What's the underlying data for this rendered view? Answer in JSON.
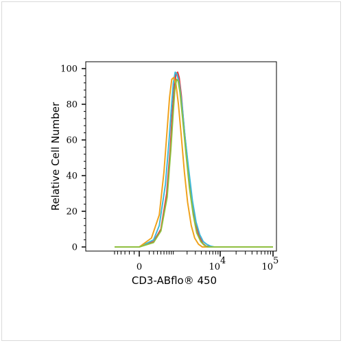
{
  "chart_data": {
    "type": "line",
    "xlabel": "CD3-ABflo® 450",
    "ylabel": "Relative Cell Number",
    "y_ticks": [
      "0",
      "20",
      "40",
      "60",
      "80",
      "100"
    ],
    "x_ticks": [
      {
        "label": "0"
      },
      {
        "label": "10",
        "sup": "4"
      },
      {
        "label": "10",
        "sup": "5"
      }
    ],
    "ylim": [
      0,
      100
    ],
    "x_scale": "biexponential",
    "grid": false,
    "series": [
      {
        "color": "#e23b3b",
        "points": [
          [
            -600,
            0
          ],
          [
            0,
            0
          ],
          [
            300,
            3
          ],
          [
            500,
            10
          ],
          [
            700,
            30
          ],
          [
            850,
            55
          ],
          [
            950,
            75
          ],
          [
            1050,
            90
          ],
          [
            1150,
            97
          ],
          [
            1250,
            98
          ],
          [
            1350,
            95
          ],
          [
            1500,
            85
          ],
          [
            1750,
            65
          ],
          [
            2100,
            45
          ],
          [
            2500,
            28
          ],
          [
            3000,
            14
          ],
          [
            3600,
            6
          ],
          [
            4300,
            2
          ],
          [
            5000,
            0.5
          ],
          [
            6500,
            0
          ],
          [
            100000,
            0
          ]
        ]
      },
      {
        "color": "#3db9d8",
        "points": [
          [
            -600,
            0
          ],
          [
            0,
            0
          ],
          [
            300,
            4
          ],
          [
            450,
            12
          ],
          [
            650,
            35
          ],
          [
            800,
            60
          ],
          [
            900,
            78
          ],
          [
            1000,
            92
          ],
          [
            1100,
            98
          ],
          [
            1200,
            97
          ],
          [
            1350,
            92
          ],
          [
            1550,
            80
          ],
          [
            1800,
            62
          ],
          [
            2150,
            44
          ],
          [
            2600,
            26
          ],
          [
            3100,
            14
          ],
          [
            3700,
            7
          ],
          [
            4400,
            3
          ],
          [
            5200,
            1.5
          ],
          [
            6200,
            0.5
          ],
          [
            7500,
            0
          ],
          [
            100000,
            0
          ]
        ]
      },
      {
        "color": "#f0a21c",
        "points": [
          [
            -600,
            0
          ],
          [
            0,
            0
          ],
          [
            250,
            5
          ],
          [
            450,
            18
          ],
          [
            600,
            42
          ],
          [
            720,
            66
          ],
          [
            820,
            84
          ],
          [
            920,
            94
          ],
          [
            1020,
            95
          ],
          [
            1150,
            91
          ],
          [
            1300,
            80
          ],
          [
            1500,
            62
          ],
          [
            1750,
            42
          ],
          [
            2050,
            25
          ],
          [
            2450,
            12
          ],
          [
            2900,
            5
          ],
          [
            3500,
            1.5
          ],
          [
            4200,
            0
          ],
          [
            100000,
            0
          ]
        ]
      },
      {
        "color": "#8fbf3f",
        "points": [
          [
            -600,
            0
          ],
          [
            0,
            0
          ],
          [
            300,
            2.5
          ],
          [
            500,
            9
          ],
          [
            720,
            28
          ],
          [
            880,
            55
          ],
          [
            980,
            73
          ],
          [
            1080,
            88
          ],
          [
            1180,
            94
          ],
          [
            1280,
            93
          ],
          [
            1400,
            87
          ],
          [
            1600,
            72
          ],
          [
            1900,
            52
          ],
          [
            2250,
            33
          ],
          [
            2700,
            18
          ],
          [
            3200,
            8
          ],
          [
            3900,
            3
          ],
          [
            4600,
            1
          ],
          [
            5500,
            0
          ],
          [
            100000,
            0
          ]
        ]
      }
    ]
  }
}
